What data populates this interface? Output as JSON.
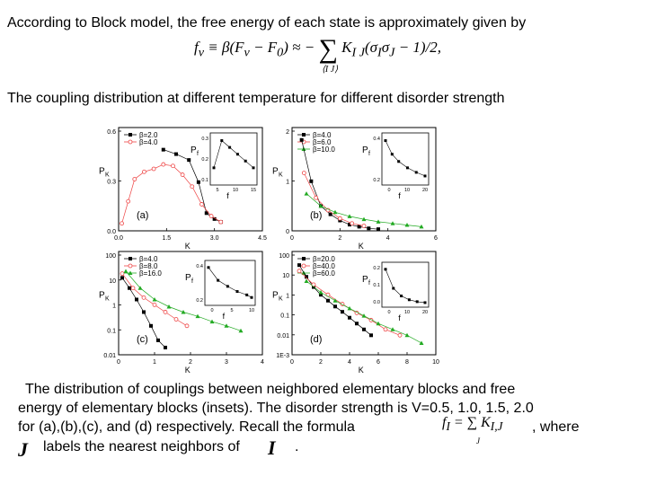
{
  "intro_text": "According to Block model, the free energy of each state is approximately given by",
  "formula_main": {
    "lhs": "f",
    "lhs_sub": "ν",
    "middle": "≡ β(F",
    "middle_sub": "ν",
    "middle_rest": " − F",
    "middle_sub2": "0",
    "approx": ") ≈ −",
    "sum_sub": "⟨I J⟩",
    "rhs": "K",
    "rhs_sub": "I J",
    "rhs_rest": "(σ",
    "sig_sub1": "I",
    "sig_mid": "σ",
    "sig_sub2": "J",
    "tail": " − 1)/2,"
  },
  "coupling_heading": "The coupling distribution at different temperature for different disorder strength",
  "panels": {
    "a": {
      "label": "(a)",
      "ylabel": "P",
      "ylabel_sub": "K",
      "xlabel": "K",
      "yticks": [
        "0.6",
        "0.3",
        "0.0"
      ],
      "xticks": [
        "0.0",
        "1.5",
        "3.0",
        "4.5"
      ],
      "legend": [
        "β=2.0",
        "β=4.0"
      ],
      "inset": {
        "ylabel": "P",
        "ylabel_sub": "f",
        "xlabel": "f",
        "yticks": [
          "0.3",
          "0.2",
          "0.1"
        ],
        "xticks": [
          "5",
          "10",
          "15"
        ]
      }
    },
    "b": {
      "label": "(b)",
      "ylabel": "P",
      "ylabel_sub": "K",
      "xlabel": "K",
      "yticks": [
        "2",
        "1",
        "0"
      ],
      "xticks": [
        "0",
        "2",
        "4",
        "6"
      ],
      "legend": [
        "β=4.0",
        "β=6.0",
        "β=10.0"
      ],
      "inset": {
        "ylabel": "P",
        "ylabel_sub": "f",
        "xlabel": "f",
        "yticks": [
          "0.4",
          "0.2"
        ],
        "xticks": [
          "0",
          "10",
          "20"
        ]
      }
    },
    "c": {
      "label": "(c)",
      "ylabel": "P",
      "ylabel_sub": "K",
      "xlabel": "K",
      "yticks": [
        "100",
        "10",
        "1",
        "0.1",
        "0.01"
      ],
      "xticks": [
        "0",
        "1",
        "2",
        "3",
        "4"
      ],
      "legend": [
        "β=4.0",
        "β=8.0",
        "β=16.0"
      ],
      "inset": {
        "ylabel": "P",
        "ylabel_sub": "f",
        "xlabel": "f",
        "yticks": [
          "0.4",
          "0.2"
        ],
        "xticks": [
          "0",
          "5",
          "10"
        ]
      }
    },
    "d": {
      "label": "(d)",
      "ylabel": "P",
      "ylabel_sub": "K",
      "xlabel": "K",
      "yticks": [
        "100",
        "10",
        "1",
        "0.1",
        "0.01",
        "1E-3"
      ],
      "xticks": [
        "0",
        "2",
        "4",
        "6",
        "8",
        "10"
      ],
      "legend": [
        "β=20.0",
        "β=40.0",
        "β=60.0"
      ],
      "inset": {
        "ylabel": "P",
        "ylabel_sub": "f",
        "xlabel": "f",
        "yticks": [
          "0.2",
          "0.1",
          "0.0"
        ],
        "xticks": [
          "0",
          "10",
          "20"
        ]
      }
    }
  },
  "chart_data": [
    {
      "type": "line",
      "id": "a",
      "yscale": "linear",
      "xlim": [
        0,
        4.5
      ],
      "ylim": [
        0,
        0.7
      ],
      "series": [
        {
          "name": "β=2.0",
          "marker": "square",
          "color": "#000000",
          "x": [
            1.4,
            1.8,
            2.2,
            2.5,
            2.75,
            3.0,
            3.2
          ],
          "y": [
            0.55,
            0.52,
            0.48,
            0.33,
            0.12,
            0.08,
            0.06
          ]
        },
        {
          "name": "β=4.0",
          "marker": "circle",
          "color": "#ee4444",
          "x": [
            0.1,
            0.3,
            0.5,
            0.8,
            1.1,
            1.4,
            1.7,
            2.0,
            2.3,
            2.6,
            2.9,
            3.2
          ],
          "y": [
            0.05,
            0.2,
            0.35,
            0.4,
            0.42,
            0.45,
            0.44,
            0.38,
            0.3,
            0.18,
            0.1,
            0.06
          ]
        }
      ],
      "inset": {
        "x": [
          5,
          7,
          9,
          11,
          13,
          15
        ],
        "y": [
          0.1,
          0.3,
          0.25,
          0.2,
          0.15,
          0.1
        ]
      }
    },
    {
      "type": "line",
      "id": "b",
      "yscale": "linear",
      "xlim": [
        0,
        6
      ],
      "ylim": [
        0,
        2.5
      ],
      "series": [
        {
          "name": "β=4.0",
          "marker": "square",
          "color": "#000000",
          "x": [
            0.4,
            0.8,
            1.2,
            1.6,
            2.0,
            2.4,
            2.8,
            3.2,
            3.6
          ],
          "y": [
            2.2,
            1.2,
            0.6,
            0.4,
            0.25,
            0.15,
            0.1,
            0.06,
            0.04
          ]
        },
        {
          "name": "β=6.0",
          "marker": "circle",
          "color": "#ee4444",
          "x": [
            0.5,
            1.0,
            1.5,
            2.0,
            2.5,
            3.0
          ],
          "y": [
            1.4,
            0.8,
            0.5,
            0.3,
            0.18,
            0.12
          ]
        },
        {
          "name": "β=10.0",
          "marker": "triangle",
          "color": "#22aa22",
          "x": [
            0.6,
            1.2,
            1.8,
            2.4,
            3.0,
            3.6,
            4.2,
            4.8,
            5.4
          ],
          "y": [
            0.9,
            0.6,
            0.45,
            0.35,
            0.28,
            0.22,
            0.18,
            0.14,
            0.1
          ]
        }
      ],
      "inset": {
        "x": [
          2,
          5,
          8,
          12,
          16,
          20
        ],
        "y": [
          0.45,
          0.3,
          0.22,
          0.15,
          0.1,
          0.06
        ]
      }
    },
    {
      "type": "line",
      "id": "c",
      "yscale": "log",
      "xlim": [
        0,
        4
      ],
      "ylim": [
        0.005,
        100
      ],
      "series": [
        {
          "name": "β=4.0",
          "marker": "square",
          "color": "#000000",
          "x": [
            0.1,
            0.3,
            0.5,
            0.7,
            0.9,
            1.1,
            1.3
          ],
          "y": [
            8,
            3,
            1,
            0.3,
            0.08,
            0.02,
            0.01
          ]
        },
        {
          "name": "β=8.0",
          "marker": "circle",
          "color": "#ee4444",
          "x": [
            0.1,
            0.4,
            0.7,
            1.0,
            1.3,
            1.6,
            1.9
          ],
          "y": [
            12,
            3,
            1.2,
            0.6,
            0.3,
            0.15,
            0.08
          ]
        },
        {
          "name": "β=16.0",
          "marker": "triangle",
          "color": "#22aa22",
          "x": [
            0.2,
            0.6,
            1.0,
            1.4,
            1.8,
            2.2,
            2.6,
            3.0,
            3.4
          ],
          "y": [
            15,
            3,
            1,
            0.5,
            0.3,
            0.2,
            0.12,
            0.08,
            0.05
          ]
        }
      ],
      "inset": {
        "x": [
          1,
          3,
          5,
          7,
          9,
          10
        ],
        "y": [
          0.4,
          0.25,
          0.18,
          0.12,
          0.08,
          0.05
        ]
      }
    },
    {
      "type": "line",
      "id": "d",
      "yscale": "log",
      "xlim": [
        0,
        10
      ],
      "ylim": [
        0.0005,
        100
      ],
      "series": [
        {
          "name": "β=20.0",
          "marker": "square",
          "color": "#000000",
          "x": [
            0.5,
            1.0,
            1.5,
            2.0,
            2.5,
            3.0,
            3.5,
            4.0,
            4.5,
            5.0,
            5.5
          ],
          "y": [
            20,
            5,
            1.5,
            0.6,
            0.3,
            0.15,
            0.08,
            0.04,
            0.02,
            0.01,
            0.005
          ]
        },
        {
          "name": "β=40.0",
          "marker": "circle",
          "color": "#ee4444",
          "x": [
            0.5,
            1.5,
            2.5,
            3.5,
            4.5,
            5.5,
            6.5,
            7.5
          ],
          "y": [
            10,
            2,
            0.6,
            0.2,
            0.07,
            0.03,
            0.01,
            0.005
          ]
        },
        {
          "name": "β=60.0",
          "marker": "triangle",
          "color": "#22aa22",
          "x": [
            1,
            2,
            3,
            4,
            5,
            6,
            7,
            8,
            9
          ],
          "y": [
            3,
            0.8,
            0.3,
            0.12,
            0.05,
            0.02,
            0.01,
            0.005,
            0.002
          ]
        }
      ],
      "inset": {
        "x": [
          2,
          6,
          10,
          14,
          18,
          22
        ],
        "y": [
          0.18,
          0.08,
          0.04,
          0.02,
          0.01,
          0.005
        ]
      }
    }
  ],
  "caption": {
    "line1": "The distribution of couplings between neighbored   elementary blocks and free",
    "line2": "energy of elementary blocks (insets).   The disorder strength is  V=0.5, 1.0, 1.5, 2.0",
    "line3": "for (a),(b),(c), and (d)   respectively. Recall the formula",
    "line3_end": ", where",
    "line4": "labels the nearest neighbors of",
    "line4_end": ".",
    "formula_lhs": "f",
    "formula_lhs_sub": "I",
    "formula_eq": " = ∑ K",
    "formula_k_sub": "I,J",
    "formula_sum_sub": "J",
    "var_j": "J",
    "var_i": "I"
  }
}
